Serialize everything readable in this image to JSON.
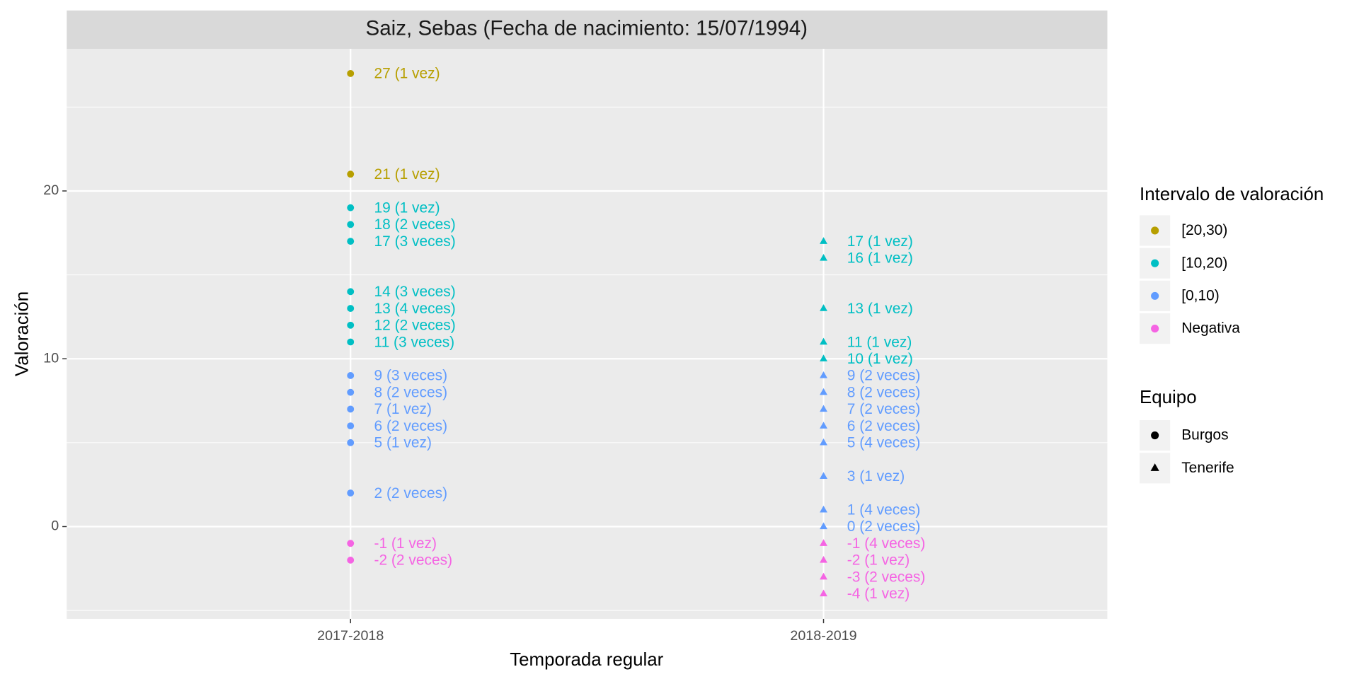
{
  "chart_data": {
    "type": "scatter",
    "title": "Saiz, Sebas (Fecha de nacimiento: 15/07/1994)",
    "x_label": "Temporada regular",
    "y_label": "Valoración",
    "categories": [
      "2017-2018",
      "2018-2019"
    ],
    "ylim": [
      -5.5,
      28.47
    ],
    "yticks": [
      0,
      10,
      20
    ],
    "minor_yticks": [
      -5,
      5,
      15,
      25
    ],
    "grid": true,
    "series": [
      {
        "name": "Burgos",
        "shape": "circle",
        "category": "2017-2018",
        "values": [
          27,
          21,
          19,
          18,
          17,
          14,
          13,
          12,
          11,
          9,
          8,
          7,
          6,
          5,
          2,
          -1,
          -2
        ],
        "value_labels": [
          "27 (1 vez)",
          "21 (1 vez)",
          "19 (1 vez)",
          "18 (2 veces)",
          "17 (3 veces)",
          "14 (3 veces)",
          "13 (4 veces)",
          "12 (2 veces)",
          "11 (3 veces)",
          "9 (3 veces)",
          "8 (2 veces)",
          "7 (1 vez)",
          "6 (2 veces)",
          "5 (1 vez)",
          "2 (2 veces)",
          "-1 (1 vez)",
          "-2 (2 veces)"
        ],
        "colors": [
          "#B79F00",
          "#B79F00",
          "#00BFC4",
          "#00BFC4",
          "#00BFC4",
          "#00BFC4",
          "#00BFC4",
          "#00BFC4",
          "#00BFC4",
          "#619CFF",
          "#619CFF",
          "#619CFF",
          "#619CFF",
          "#619CFF",
          "#619CFF",
          "#F564E3",
          "#F564E3"
        ]
      },
      {
        "name": "Tenerife",
        "shape": "triangle",
        "category": "2018-2019",
        "values": [
          17,
          16,
          13,
          11,
          10,
          9,
          8,
          7,
          6,
          5,
          3,
          1,
          0,
          -1,
          -2,
          -3,
          -4
        ],
        "value_labels": [
          "17 (1 vez)",
          "16 (1 vez)",
          "13 (1 vez)",
          "11 (1 vez)",
          "10 (1 vez)",
          "9 (2 veces)",
          "8 (2 veces)",
          "7 (2 veces)",
          "6 (2 veces)",
          "5 (4 veces)",
          "3 (1 vez)",
          "1 (4 veces)",
          "0 (2 veces)",
          "-1 (4 veces)",
          "-2 (1 vez)",
          "-3 (2 veces)",
          "-4 (1 vez)"
        ],
        "colors": [
          "#00BFC4",
          "#00BFC4",
          "#00BFC4",
          "#00BFC4",
          "#00BFC4",
          "#619CFF",
          "#619CFF",
          "#619CFF",
          "#619CFF",
          "#619CFF",
          "#619CFF",
          "#619CFF",
          "#619CFF",
          "#F564E3",
          "#F564E3",
          "#F564E3",
          "#F564E3"
        ]
      }
    ],
    "color_legend": {
      "title": "Intervalo de valoración",
      "entries": [
        {
          "name": "[20,30)",
          "color": "#B79F00"
        },
        {
          "name": "[10,20)",
          "color": "#00BFC4"
        },
        {
          "name": "[0,10)",
          "color": "#619CFF"
        },
        {
          "name": "Negativa",
          "color": "#F564E3"
        }
      ]
    },
    "shape_legend": {
      "title": "Equipo"
    }
  }
}
